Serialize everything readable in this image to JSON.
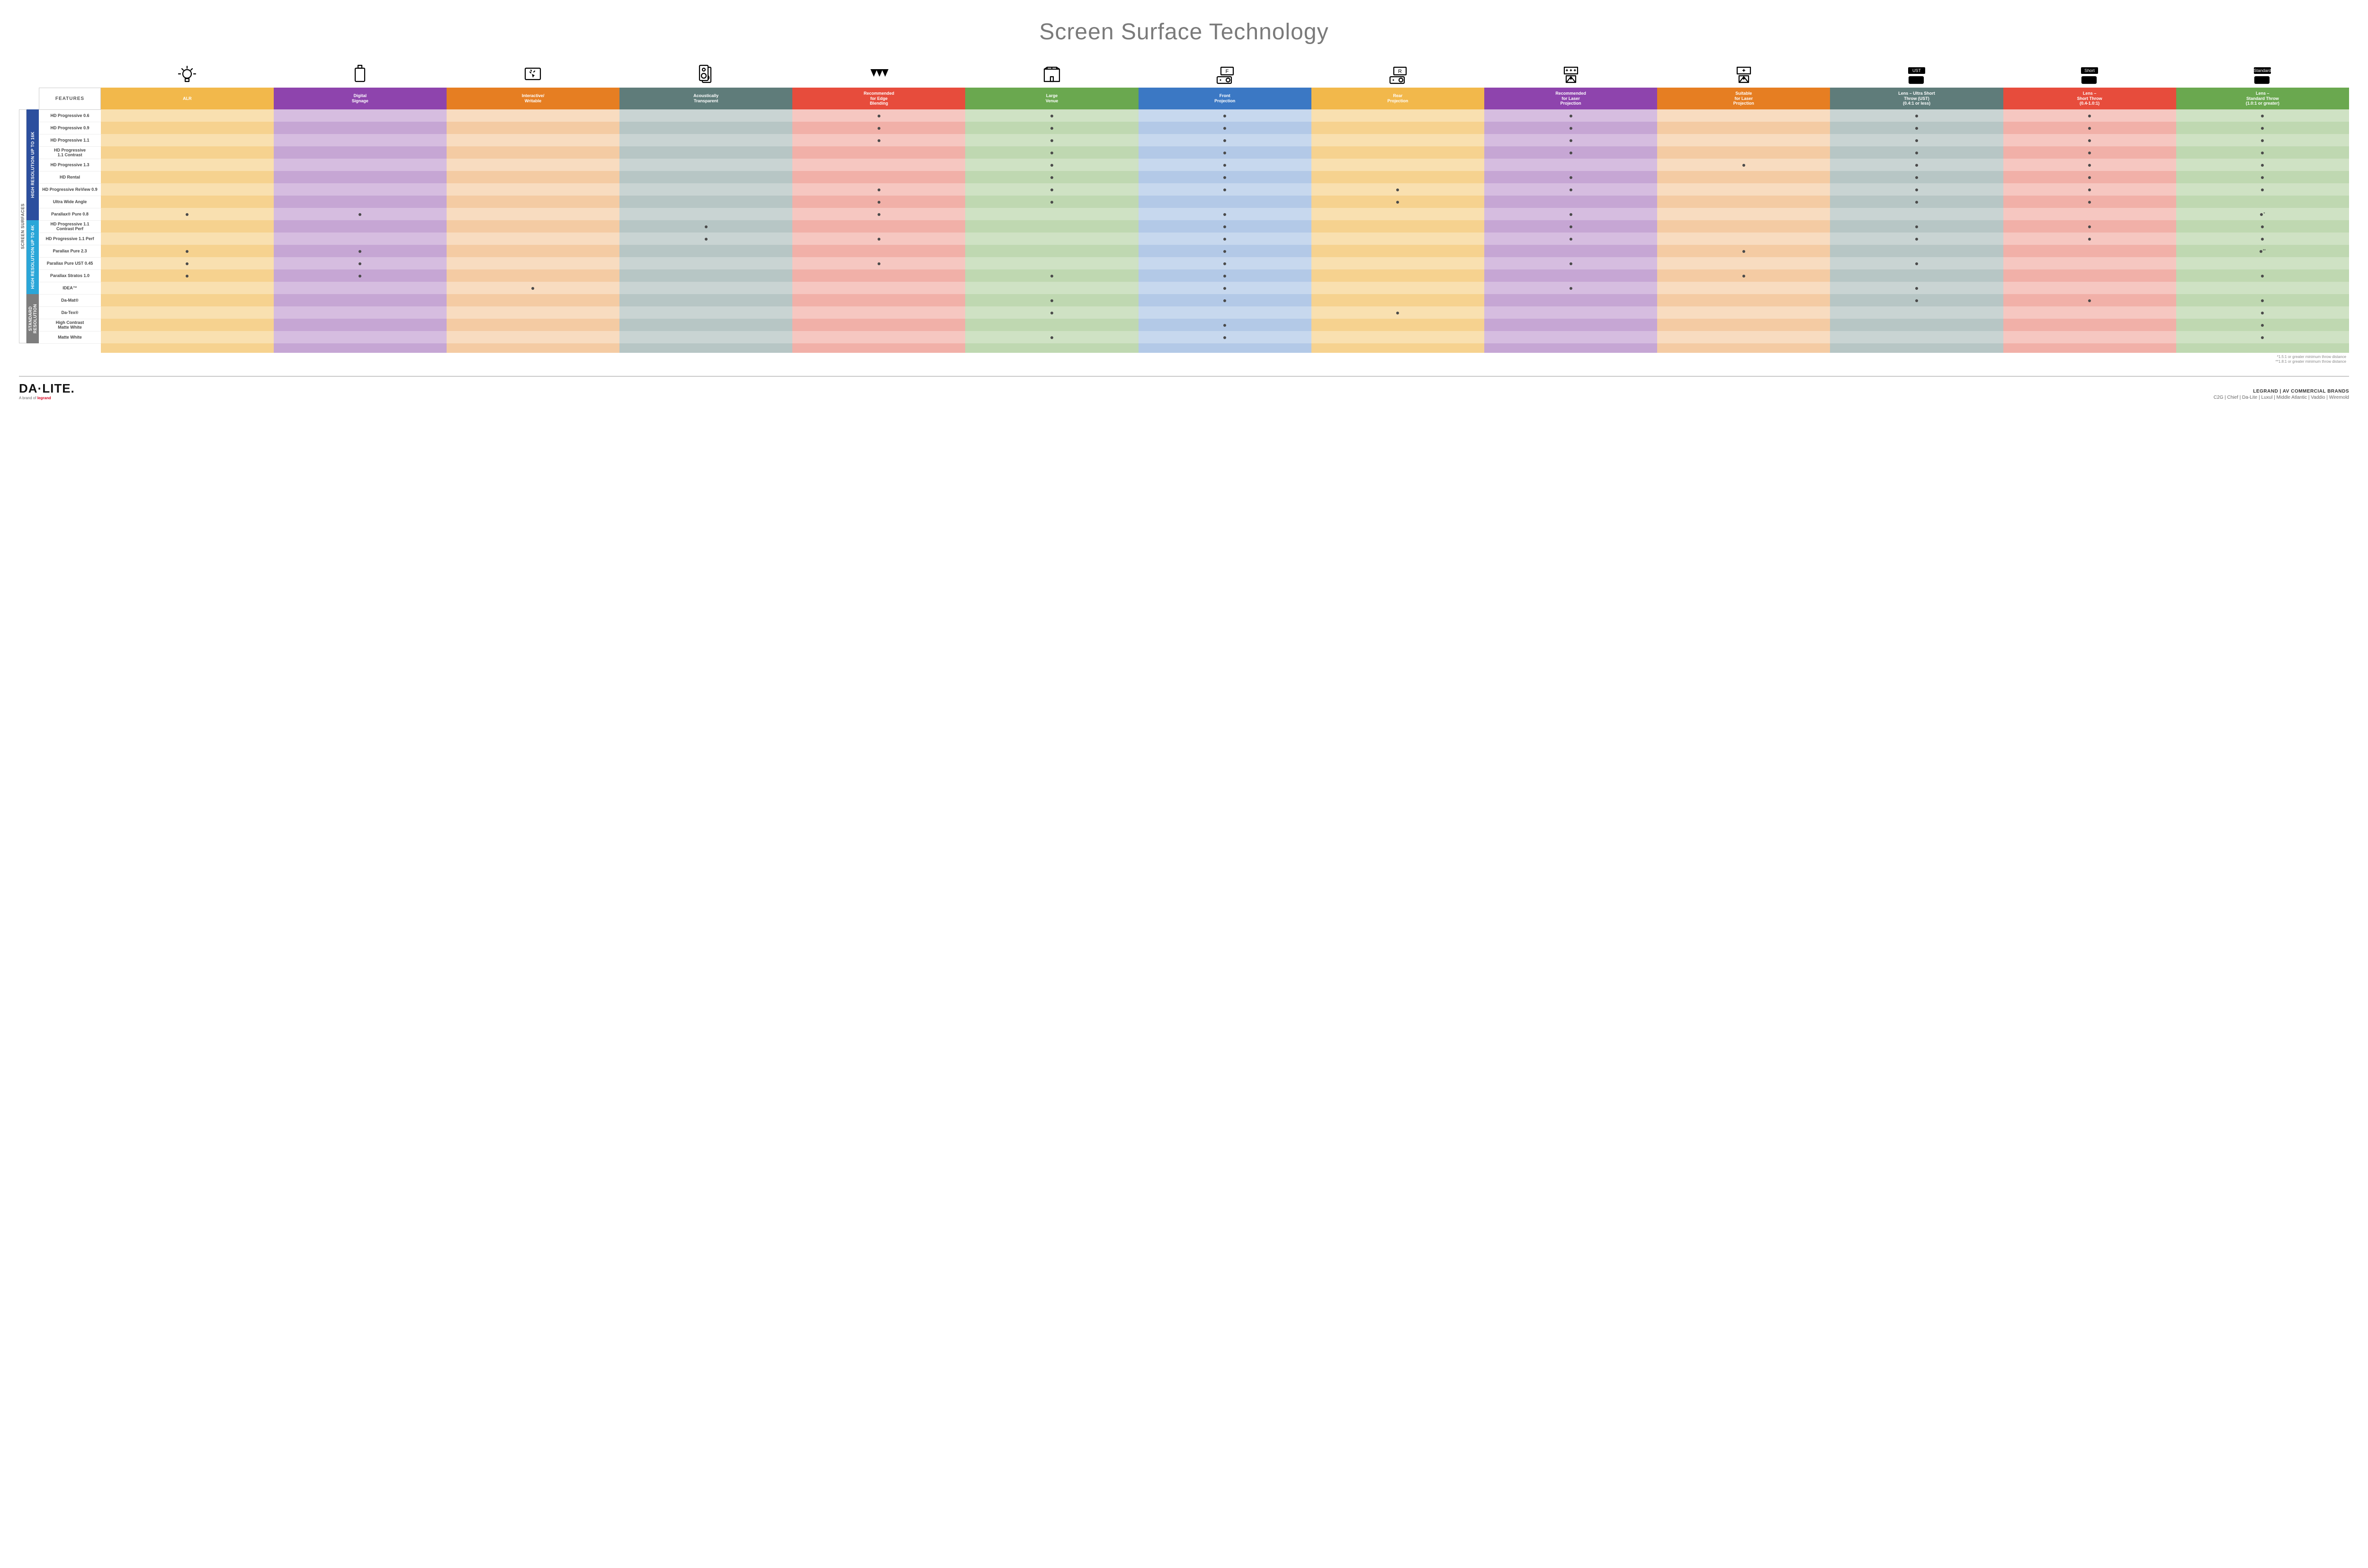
{
  "title": "Screen Surface Technology",
  "features_header": "FEATURES",
  "side_label": "SCREEN SURFACES",
  "columns": [
    {
      "key": "alr",
      "label": "ALR",
      "color": "#f2b84b",
      "tints": [
        "#f9e0b0",
        "#f6d28f"
      ]
    },
    {
      "key": "signage",
      "label": "Digital\nSignage",
      "color": "#8e44ad",
      "tints": [
        "#d6bde0",
        "#c6a6d4"
      ]
    },
    {
      "key": "interactive",
      "label": "Interactive/\nWritable",
      "color": "#e67e22",
      "tints": [
        "#f8dcc0",
        "#f4cba3"
      ]
    },
    {
      "key": "acoustic",
      "label": "Acoustically\nTransparent",
      "color": "#5f7c7a",
      "tints": [
        "#c9d4d3",
        "#b7c6c5"
      ]
    },
    {
      "key": "edge",
      "label": "Recommended\nfor Edge\nBlending",
      "color": "#e74c3c",
      "tints": [
        "#f6c7c1",
        "#f1b0a8"
      ]
    },
    {
      "key": "large",
      "label": "Large\nVenue",
      "color": "#6aa84f",
      "tints": [
        "#cfe2c4",
        "#bfd8b1"
      ]
    },
    {
      "key": "front",
      "label": "Front\nProjection",
      "color": "#3b78c4",
      "tints": [
        "#c7d8ee",
        "#b3c9e7"
      ]
    },
    {
      "key": "rear",
      "label": "Rear\nProjection",
      "color": "#f2b84b",
      "tints": [
        "#f9e0b0",
        "#f6d28f"
      ]
    },
    {
      "key": "rec_laser",
      "label": "Recommended\nfor Laser\nProjection",
      "color": "#8e44ad",
      "tints": [
        "#d6bde0",
        "#c6a6d4"
      ]
    },
    {
      "key": "suit_laser",
      "label": "Suitable\nfor Laser\nProjection",
      "color": "#e67e22",
      "tints": [
        "#f8dcc0",
        "#f4cba3"
      ]
    },
    {
      "key": "ust",
      "label": "Lens – Ultra Short\nThrow (UST)\n(0.4:1 or less)",
      "color": "#5f7c7a",
      "tints": [
        "#c9d4d3",
        "#b7c6c5"
      ]
    },
    {
      "key": "short",
      "label": "Lens –\nShort Throw\n(0.4-1.0:1)",
      "color": "#e74c3c",
      "tints": [
        "#f6c7c1",
        "#f1b0a8"
      ]
    },
    {
      "key": "std",
      "label": "Lens –\nStandard Throw\n(1.0:1 or greater)",
      "color": "#6aa84f",
      "tints": [
        "#cfe2c4",
        "#bfd8b1"
      ]
    }
  ],
  "groups": [
    {
      "label": "HIGH RESOLUTION UP TO 16K",
      "color": "#2c4f9e",
      "rows": [
        {
          "name": "HD Progressive 0.6",
          "dots": [
            "edge",
            "large",
            "front",
            "rec_laser",
            "ust",
            "short",
            "std"
          ]
        },
        {
          "name": "HD Progressive 0.9",
          "dots": [
            "edge",
            "large",
            "front",
            "rec_laser",
            "ust",
            "short",
            "std"
          ]
        },
        {
          "name": "HD Progressive 1.1",
          "dots": [
            "edge",
            "large",
            "front",
            "rec_laser",
            "ust",
            "short",
            "std"
          ]
        },
        {
          "name": "HD Progressive\n1.1 Contrast",
          "dots": [
            "large",
            "front",
            "rec_laser",
            "ust",
            "short",
            "std"
          ]
        },
        {
          "name": "HD Progressive 1.3",
          "dots": [
            "large",
            "front",
            "suit_laser",
            "ust",
            "short",
            "std"
          ]
        },
        {
          "name": "HD Rental",
          "dots": [
            "large",
            "front",
            "rec_laser",
            "ust",
            "short",
            "std"
          ]
        },
        {
          "name": "HD Progressive ReView 0.9",
          "dots": [
            "edge",
            "large",
            "front",
            "rear",
            "rec_laser",
            "ust",
            "short",
            "std"
          ]
        },
        {
          "name": "Ultra Wide Angle",
          "dots": [
            "edge",
            "large",
            "rear",
            "ust",
            "short"
          ]
        },
        {
          "name": "Parallax® Pure 0.8",
          "dots": [
            "alr",
            "signage",
            "edge",
            "front",
            "rec_laser",
            "std"
          ],
          "suffix": "*"
        }
      ]
    },
    {
      "label": "HIGH RESOLUTION UP TO 4K",
      "color": "#2aa6d8",
      "rows": [
        {
          "name": "HD Progressive 1.1\nContrast Perf",
          "dots": [
            "acoustic",
            "front",
            "rec_laser",
            "ust",
            "short",
            "std"
          ]
        },
        {
          "name": "HD Progressive 1.1 Perf",
          "dots": [
            "acoustic",
            "edge",
            "front",
            "rec_laser",
            "ust",
            "short",
            "std"
          ]
        },
        {
          "name": "Parallax Pure 2.3",
          "dots": [
            "alr",
            "signage",
            "front",
            "suit_laser",
            "std"
          ],
          "suffix": "**"
        },
        {
          "name": "Parallax Pure UST 0.45",
          "dots": [
            "alr",
            "signage",
            "edge",
            "front",
            "rec_laser",
            "ust"
          ]
        },
        {
          "name": "Parallax Stratos 1.0",
          "dots": [
            "alr",
            "signage",
            "large",
            "front",
            "suit_laser",
            "std"
          ]
        },
        {
          "name": "IDEA™",
          "dots": [
            "interactive",
            "front",
            "rec_laser",
            "ust"
          ]
        }
      ]
    },
    {
      "label": "STANDARD\nRESOLUTION",
      "color": "#7d7d7d",
      "rows": [
        {
          "name": "Da-Mat®",
          "dots": [
            "large",
            "front",
            "ust",
            "short",
            "std"
          ]
        },
        {
          "name": "Da-Tex®",
          "dots": [
            "large",
            "rear",
            "std"
          ]
        },
        {
          "name": "High Contrast\nMatte White",
          "dots": [
            "front",
            "std"
          ]
        },
        {
          "name": "Matte White",
          "dots": [
            "large",
            "front",
            "std"
          ]
        }
      ]
    }
  ],
  "icons": {
    "alr": "bulb",
    "signage": "screen",
    "interactive": "touch",
    "acoustic": "speaker",
    "edge": "triangles",
    "large": "venue",
    "front": "projF",
    "rear": "projR",
    "rec_laser": "laser3",
    "suit_laser": "laser1",
    "ust": "lensUST",
    "short": "lensShort",
    "std": "lensStd"
  },
  "footnotes": [
    "*1.5:1 or greater minimum throw distance",
    "**1.8:1 or greater minimum throw distance"
  ],
  "footer": {
    "logo_main": "DA·LITE.",
    "logo_sub_prefix": "A brand of ",
    "logo_sub_brand": "legrand",
    "brands_title": "LEGRAND | AV COMMERCIAL BRANDS",
    "brands_list": "C2G  |  Chief  |  Da-Lite  |  Luxul  |  Middle Atlantic  |  Vaddio  |  Wiremold"
  }
}
